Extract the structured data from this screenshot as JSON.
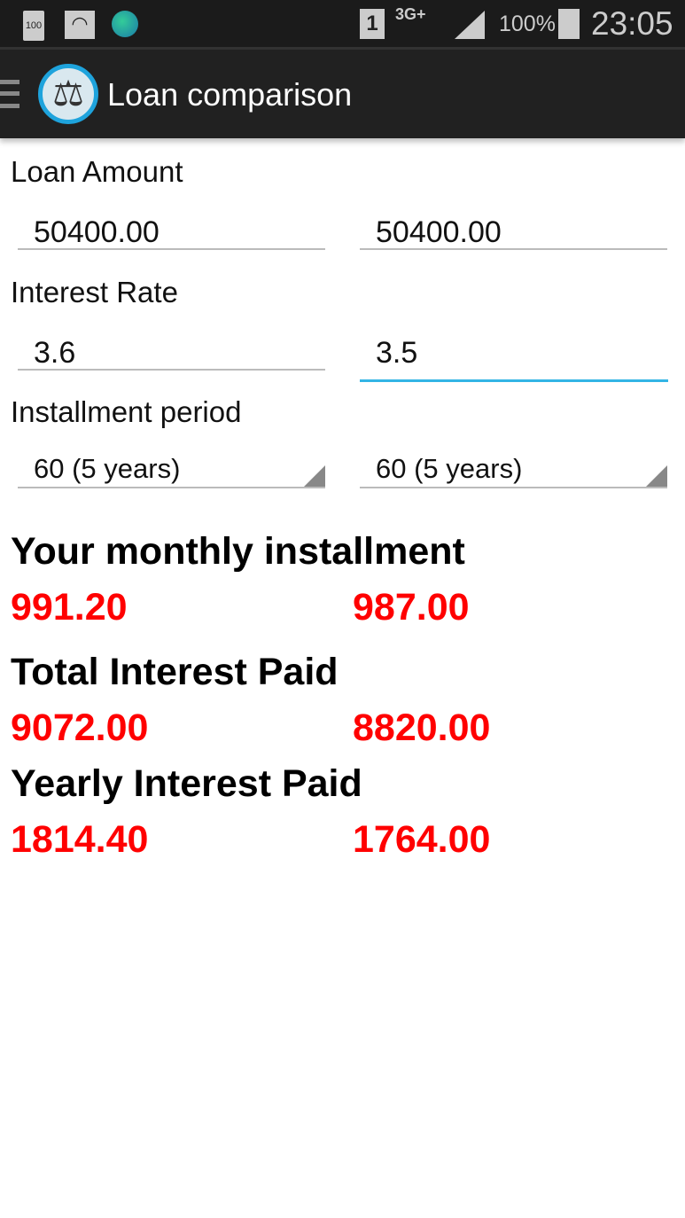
{
  "status_bar": {
    "battery_icon_text": "100",
    "sim_slot": "1",
    "network": "3G+",
    "battery_percent": "100%",
    "time": "23:05"
  },
  "action_bar": {
    "title": "Loan comparison"
  },
  "form": {
    "loan_amount_label": "Loan Amount",
    "loan_amount": [
      "50400.00",
      "50400.00"
    ],
    "interest_rate_label": "Interest Rate",
    "interest_rate": [
      "3.6",
      "3.5"
    ],
    "period_label": "Installment period",
    "period": [
      "60 (5 years)",
      "60 (5 years)"
    ]
  },
  "results": {
    "monthly_label": "Your monthly installment",
    "monthly": [
      "991.20",
      "987.00"
    ],
    "total_label": "Total Interest Paid",
    "total": [
      "9072.00",
      "8820.00"
    ],
    "yearly_label": "Yearly Interest Paid",
    "yearly": [
      "1814.40",
      "1764.00"
    ]
  },
  "colors": {
    "accent": "#33b5e5",
    "result": "#ff0000",
    "action_bar": "#212121"
  }
}
